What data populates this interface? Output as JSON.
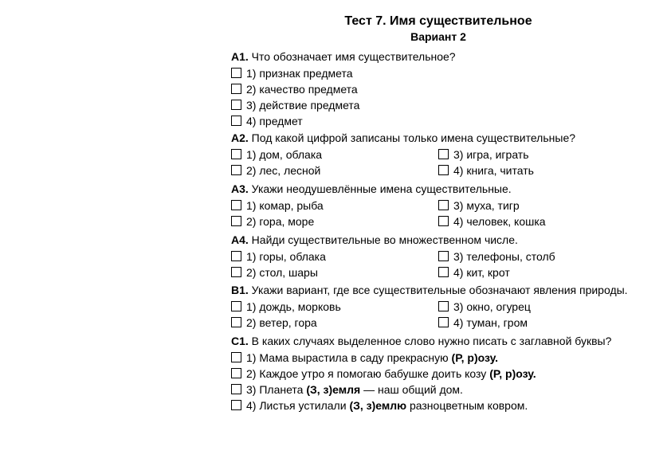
{
  "title": "Тест 7. Имя существительное",
  "subtitle": "Вариант 2",
  "questions": [
    {
      "label": "А1.",
      "text": "Что обозначает имя существительное?",
      "layout": "single",
      "options": [
        {
          "n": "1)",
          "text": "признак предмета"
        },
        {
          "n": "2)",
          "text": "качество предмета"
        },
        {
          "n": "3)",
          "text": "действие предмета"
        },
        {
          "n": "4)",
          "text": "предмет"
        }
      ]
    },
    {
      "label": "А2.",
      "text": "Под какой цифрой записаны только имена существительные?",
      "layout": "two",
      "left": [
        {
          "n": "1)",
          "text": "дом, облака"
        },
        {
          "n": "2)",
          "text": "лес, лесной"
        }
      ],
      "right": [
        {
          "n": "3)",
          "text": "игра, играть"
        },
        {
          "n": "4)",
          "text": "книга, читать"
        }
      ]
    },
    {
      "label": "А3.",
      "text": "Укажи неодушевлённые имена существительные.",
      "layout": "two",
      "left": [
        {
          "n": "1)",
          "text": "комар, рыба"
        },
        {
          "n": "2)",
          "text": "гора, море"
        }
      ],
      "right": [
        {
          "n": "3)",
          "text": "муха, тигр"
        },
        {
          "n": "4)",
          "text": "человек, кошка"
        }
      ]
    },
    {
      "label": "А4.",
      "text": "Найди существительные во множественном числе.",
      "layout": "two",
      "left": [
        {
          "n": "1)",
          "text": "горы, облака"
        },
        {
          "n": "2)",
          "text": "стол, шары"
        }
      ],
      "right": [
        {
          "n": "3)",
          "text": "телефоны, столб"
        },
        {
          "n": "4)",
          "text": "кит, крот"
        }
      ]
    },
    {
      "label": "В1.",
      "text": "Укажи вариант, где все существительные обозначают явления природы.",
      "layout": "two",
      "left": [
        {
          "n": "1)",
          "text": "дождь, морковь"
        },
        {
          "n": "2)",
          "text": "ветер, гора"
        }
      ],
      "right": [
        {
          "n": "3)",
          "text": "окно, огурец"
        },
        {
          "n": "4)",
          "text": "туман, гром"
        }
      ]
    },
    {
      "label": "С1.",
      "text": "В каких случаях выделенное слово нужно писать с заглавной буквы?",
      "layout": "single",
      "options": [
        {
          "n": "1)",
          "html": "Мама вырастила в саду прекрасную <span class=\"bold\">(Р, р)озу.</span>"
        },
        {
          "n": "2)",
          "html": "Каждое утро я помогаю бабушке доить козу <span class=\"bold\">(Р, р)озу.</span>"
        },
        {
          "n": "3)",
          "html": "Планета <span class=\"bold\">(З, з)емля</span> — наш общий дом."
        },
        {
          "n": "4)",
          "html": "Листья устилали <span class=\"bold\">(З, з)емлю</span> разноцветным ковром."
        }
      ]
    }
  ]
}
